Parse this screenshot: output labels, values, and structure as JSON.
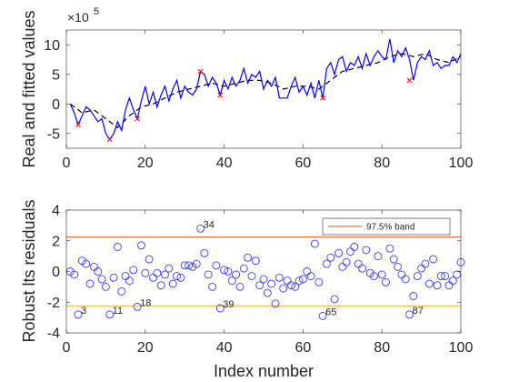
{
  "chart_data": [
    {
      "type": "line",
      "ylabel": "Real and fitted values",
      "xlabel": "",
      "exponent_label": "×10",
      "exponent_power": "5",
      "xlim": [
        0,
        100
      ],
      "ylim": [
        -7.5,
        12.5
      ],
      "xticks": [
        0,
        20,
        40,
        60,
        80,
        100
      ],
      "yticks": [
        -5,
        0,
        5,
        10
      ],
      "grid": false,
      "colors": {
        "real": "#0000ff",
        "fitted": "#000000",
        "marker": "#ff0000"
      },
      "series": [
        {
          "style": "solid",
          "x": [
            1,
            2,
            3,
            4,
            5,
            6,
            7,
            8,
            9,
            10,
            11,
            12,
            13,
            14,
            15,
            16,
            17,
            18,
            19,
            20,
            21,
            22,
            23,
            24,
            25,
            26,
            27,
            28,
            29,
            30,
            31,
            32,
            33,
            34,
            35,
            36,
            37,
            38,
            39,
            40,
            41,
            42,
            43,
            44,
            45,
            46,
            47,
            48,
            49,
            50,
            51,
            52,
            53,
            54,
            55,
            56,
            57,
            58,
            59,
            60,
            61,
            62,
            63,
            64,
            65,
            66,
            67,
            68,
            69,
            70,
            71,
            72,
            73,
            74,
            75,
            76,
            77,
            78,
            79,
            80,
            81,
            82,
            83,
            84,
            85,
            86,
            87,
            88,
            89,
            90,
            91,
            92,
            93,
            94,
            95,
            96,
            97,
            98,
            99,
            100
          ],
          "values": [
            0.0,
            -1.5,
            -3.5,
            -2.0,
            -0.5,
            -1.0,
            -2.0,
            -3.0,
            -2.5,
            -5.0,
            -6.0,
            -5.0,
            -3.0,
            -4.5,
            -1.0,
            1.0,
            -1.0,
            -2.5,
            0.5,
            3.0,
            0.0,
            2.0,
            -0.5,
            1.5,
            3.0,
            0.5,
            2.5,
            4.0,
            1.0,
            3.0,
            2.0,
            1.5,
            2.5,
            5.5,
            5.0,
            3.0,
            4.5,
            3.5,
            1.5,
            4.0,
            2.5,
            4.5,
            3.0,
            4.0,
            6.0,
            3.5,
            5.0,
            4.5,
            5.5,
            2.5,
            4.0,
            3.0,
            4.5,
            1.0,
            1.0,
            1.0,
            3.0,
            4.5,
            2.0,
            3.0,
            1.5,
            3.5,
            1.0,
            4.0,
            1.0,
            6.0,
            7.0,
            5.0,
            7.5,
            8.0,
            5.5,
            7.0,
            6.5,
            8.0,
            6.0,
            8.5,
            6.5,
            8.0,
            9.0,
            8.0,
            7.5,
            11.0,
            7.0,
            9.0,
            8.0,
            9.5,
            7.5,
            4.0,
            7.0,
            8.0,
            7.5,
            9.0,
            6.5,
            7.0,
            6.0,
            6.5,
            6.5,
            8.0,
            7.0,
            8.5
          ]
        },
        {
          "style": "dashed",
          "x": [
            1,
            4,
            7,
            10,
            13,
            16,
            19,
            22,
            25,
            28,
            31,
            34,
            37,
            40,
            43,
            46,
            49,
            52,
            55,
            58,
            61,
            64,
            67,
            70,
            73,
            76,
            79,
            82,
            85,
            88,
            91,
            94,
            97,
            100
          ],
          "values": [
            0.0,
            -1.5,
            -1.0,
            -2.5,
            -4.0,
            -2.0,
            -0.5,
            0.0,
            1.0,
            2.0,
            2.5,
            3.0,
            3.5,
            3.0,
            3.5,
            4.0,
            4.0,
            3.5,
            2.5,
            3.0,
            3.0,
            2.5,
            4.0,
            5.5,
            6.0,
            6.5,
            7.0,
            8.0,
            8.5,
            8.0,
            8.5,
            7.5,
            7.0,
            8.0
          ]
        },
        {
          "style": "markers",
          "x": [
            3,
            11,
            18,
            34,
            39,
            65,
            87
          ],
          "values": [
            -3.5,
            -6.0,
            -2.5,
            5.5,
            1.5,
            1.0,
            4.0
          ]
        }
      ]
    },
    {
      "type": "scatter",
      "ylabel": "Robust lts residuals",
      "xlabel": "Index number",
      "xlim": [
        0,
        100
      ],
      "ylim": [
        -4,
        4
      ],
      "xticks": [
        0,
        20,
        40,
        60,
        80,
        100
      ],
      "yticks": [
        -4,
        -2,
        0,
        2,
        4
      ],
      "grid": false,
      "legend_position": "top-right",
      "legend_label": "97.5% band",
      "bands": [
        2.24,
        -2.24
      ],
      "colors": {
        "points": "#3b3bff",
        "upper_band": "#d95319",
        "lower_band": "#edb120"
      },
      "x": [
        1,
        2,
        3,
        4,
        5,
        6,
        7,
        8,
        9,
        10,
        11,
        12,
        13,
        14,
        15,
        16,
        17,
        18,
        19,
        20,
        21,
        22,
        23,
        24,
        25,
        26,
        27,
        28,
        29,
        30,
        31,
        32,
        33,
        34,
        35,
        36,
        37,
        38,
        39,
        40,
        41,
        42,
        43,
        44,
        45,
        46,
        47,
        48,
        49,
        50,
        51,
        52,
        53,
        54,
        55,
        56,
        57,
        58,
        59,
        60,
        61,
        62,
        63,
        64,
        65,
        66,
        67,
        68,
        69,
        70,
        71,
        72,
        73,
        74,
        75,
        76,
        77,
        78,
        79,
        80,
        81,
        82,
        83,
        84,
        85,
        86,
        87,
        88,
        89,
        90,
        91,
        92,
        93,
        94,
        95,
        96,
        97,
        98,
        99,
        100
      ],
      "values": [
        0.0,
        -0.2,
        -2.8,
        0.7,
        0.5,
        -0.8,
        0.3,
        0.0,
        -0.5,
        -1.0,
        -2.8,
        -0.4,
        1.6,
        -1.3,
        -0.3,
        -0.6,
        0.1,
        -2.3,
        1.7,
        -0.1,
        0.8,
        -0.4,
        -0.1,
        -0.9,
        -0.2,
        0.2,
        -0.8,
        -0.3,
        -0.4,
        0.4,
        0.4,
        0.3,
        0.5,
        2.8,
        1.2,
        -0.2,
        -1.0,
        0.4,
        -2.4,
        0.1,
        0.0,
        -0.6,
        -0.2,
        -1.0,
        0.2,
        0.9,
        -0.3,
        0.7,
        -0.9,
        -0.5,
        -1.4,
        -0.8,
        -2.1,
        -0.4,
        -1.1,
        -0.6,
        -0.9,
        -1.0,
        -0.6,
        -0.5,
        0.0,
        -0.3,
        1.8,
        -0.7,
        -2.9,
        0.5,
        0.9,
        -1.8,
        1.2,
        0.3,
        0.6,
        1.3,
        1.6,
        0.5,
        0.2,
        1.4,
        -0.1,
        -0.3,
        1.0,
        -0.2,
        -0.7,
        1.5,
        0.8,
        0.3,
        -0.2,
        -0.5,
        -2.8,
        -1.6,
        -0.3,
        0.2,
        0.5,
        -0.8,
        0.8,
        -0.9,
        -0.3,
        -0.3,
        -0.9,
        -0.6,
        -0.2,
        0.6
      ],
      "labels": [
        {
          "text": "3",
          "x": 3,
          "y": -2.8
        },
        {
          "text": "11",
          "x": 11,
          "y": -2.8
        },
        {
          "text": "18",
          "x": 18,
          "y": -2.3
        },
        {
          "text": "34",
          "x": 34,
          "y": 2.8
        },
        {
          "text": "39",
          "x": 39,
          "y": -2.4
        },
        {
          "text": "65",
          "x": 65,
          "y": -2.9
        },
        {
          "text": "87",
          "x": 87,
          "y": -2.8
        }
      ]
    }
  ]
}
